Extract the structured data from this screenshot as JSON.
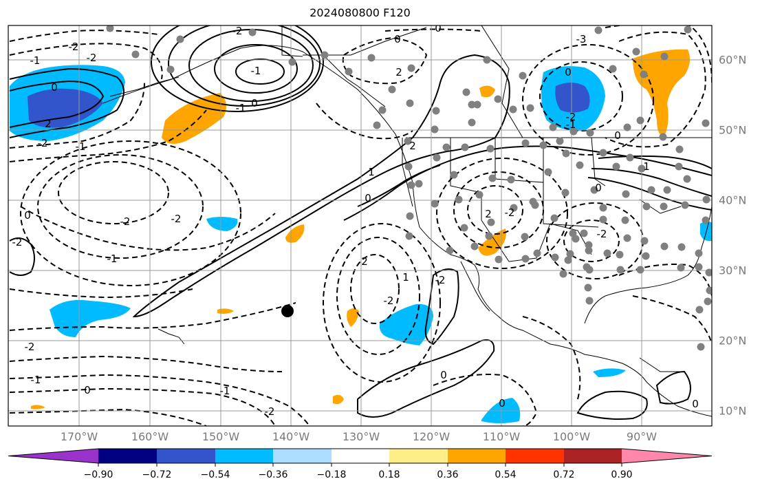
{
  "title": "2024080800 F120",
  "lon_labels": [
    "170°W",
    "160°W",
    "150°W",
    "140°W",
    "130°W",
    "120°W",
    "110°W",
    "100°W",
    "90°W"
  ],
  "lat_labels": [
    "60°N",
    "50°N",
    "40°N",
    "30°N",
    "20°N",
    "10°N"
  ],
  "colorbar": {
    "ticks": [
      "−0.90",
      "−0.72",
      "−0.54",
      "−0.36",
      "−0.18",
      "0.18",
      "0.36",
      "0.54",
      "0.72",
      "0.90"
    ],
    "colors": [
      "#9933cc",
      "#000080",
      "#3355cc",
      "#00bbff",
      "#aaddff",
      "#ffffff",
      "#ffee88",
      "#ffa500",
      "#ff3300",
      "#aa2222",
      "#ff88aa"
    ]
  },
  "contour_labels": [
    "-2",
    "-1",
    "-2",
    "0",
    "2",
    "-2",
    "-1",
    "-2",
    "-2",
    "-1",
    "0",
    "-2",
    "-1",
    "-2",
    "-1",
    "0",
    "2",
    "1",
    "0",
    "-2",
    "1",
    "2",
    "-2",
    "-1",
    "0",
    "-1",
    "-2",
    "-3",
    "1",
    "0",
    "-2",
    "0",
    "2",
    "-2",
    "-2",
    "0",
    "0",
    "0",
    "0",
    "-1",
    "-2",
    "2",
    "0",
    "0"
  ]
}
